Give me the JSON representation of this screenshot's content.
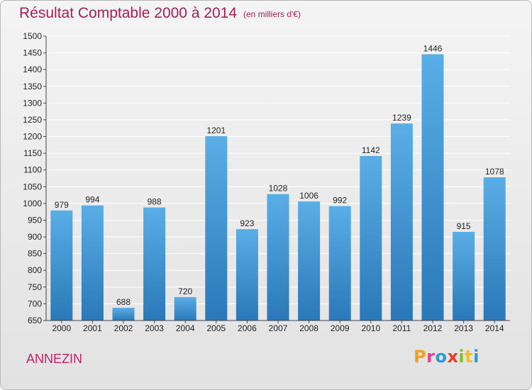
{
  "chart_data": {
    "type": "bar",
    "title": "Résultat Comptable 2000 à 2014",
    "subtitle": "(en milliers d'€)",
    "categories": [
      "2000",
      "2001",
      "2002",
      "2003",
      "2004",
      "2005",
      "2006",
      "2007",
      "2008",
      "2009",
      "2010",
      "2011",
      "2012",
      "2013",
      "2014"
    ],
    "values": [
      979,
      994,
      688,
      988,
      720,
      1201,
      923,
      1028,
      1006,
      992,
      1142,
      1239,
      1446,
      915,
      1078
    ],
    "ylim": [
      650,
      1500
    ],
    "yticks": [
      650,
      700,
      750,
      800,
      850,
      900,
      950,
      1000,
      1050,
      1100,
      1150,
      1200,
      1250,
      1300,
      1350,
      1400,
      1450,
      1500
    ],
    "grid": true,
    "bar_color_top": "#5aaee6",
    "bar_color_bottom": "#2a78b8"
  },
  "footer": {
    "commune": "ANNEZIN",
    "logo_text": "Proxiti",
    "logo_colors": [
      "#f0a020",
      "#e84090",
      "#2a9ad8",
      "#e84020",
      "#80c030",
      "#f0c020",
      "#2a9ad8"
    ]
  },
  "colors": {
    "title": "#a0205a",
    "grid": "#ffffff"
  }
}
